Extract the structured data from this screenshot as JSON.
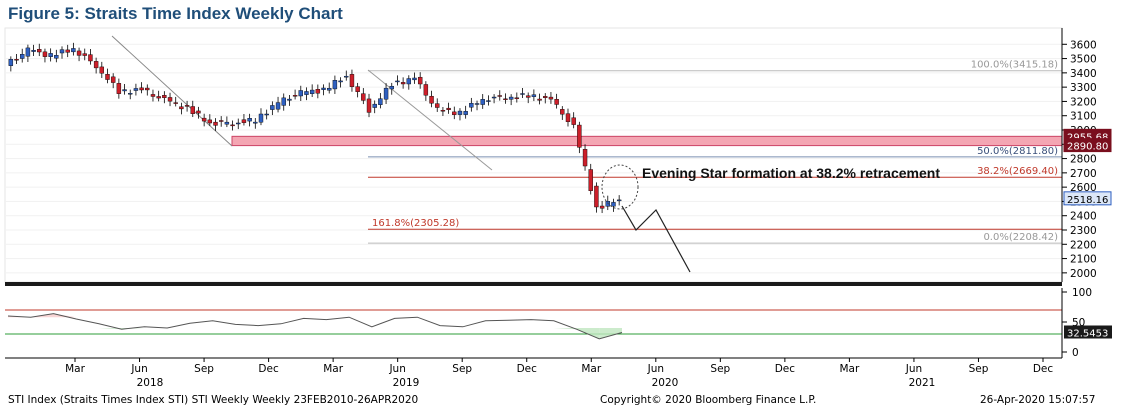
{
  "title": "Figure 5: Straits Time Index Weekly Chart",
  "annotation": "Evening Star formation at 38.2% retracement",
  "footer": {
    "left": "STI Index (Straits Times Index STI) STI Weekly  Weekly 23FEB2010-26APR2020",
    "center": "Copyright© 2020 Bloomberg Finance L.P.",
    "right": "26-Apr-2020 15:07:57"
  },
  "colors": {
    "up_candle": "#2e5fc0",
    "down_candle": "#cc1f2a",
    "resistance_zone": "#f4a6b3",
    "fib_line": "#c0392b",
    "rsi_line": "#555555",
    "title": "#1f4e79"
  },
  "chart_data": [
    {
      "type": "line",
      "name": "STI weekly price",
      "ylim": [
        1950,
        3700
      ],
      "y_ticks": [
        2000,
        2100,
        2200,
        2300,
        2400,
        2500,
        2600,
        2700,
        2800,
        2900,
        3000,
        3100,
        3200,
        3300,
        3400,
        3500,
        3600
      ],
      "x_ticks": [
        "Mar",
        "Jun",
        "Sep",
        "Dec",
        "Mar",
        "Jun",
        "Sep",
        "Dec",
        "Mar",
        "Jun",
        "Sep",
        "Dec",
        "Mar",
        "Jun",
        "Sep",
        "Dec"
      ],
      "x_years": [
        "2018",
        "2019",
        "2020",
        "2021"
      ],
      "x_dates": [
        "2018-01",
        "2018-02",
        "2018-03",
        "2018-04",
        "2018-05",
        "2018-06",
        "2018-07",
        "2018-08",
        "2018-09",
        "2018-10",
        "2018-11",
        "2018-12",
        "2019-01",
        "2019-02",
        "2019-03",
        "2019-04",
        "2019-05",
        "2019-06",
        "2019-07",
        "2019-08",
        "2019-09",
        "2019-10",
        "2019-11",
        "2019-12",
        "2020-01",
        "2020-02",
        "2020-03",
        "2020-04"
      ],
      "series": [
        {
          "values": [
            3450,
            3560,
            3520,
            3570,
            3450,
            3270,
            3280,
            3210,
            3150,
            3050,
            3050,
            3070,
            3190,
            3260,
            3280,
            3380,
            3140,
            3320,
            3360,
            3140,
            3120,
            3220,
            3230,
            3240,
            3210,
            3020,
            2450,
            2518
          ]
        }
      ],
      "price_labels": [
        "3415.18",
        "2955.68",
        "2890.80",
        "2518.16"
      ],
      "fibonacci": [
        {
          "label": "100.0%(3415.18)",
          "value": 3415.18
        },
        {
          "label": "50.0%(2811.80)",
          "value": 2811.8
        },
        {
          "label": "38.2%(2669.40)",
          "value": 2669.4
        },
        {
          "label": "0.0%(2208.42)",
          "value": 2208.42
        },
        {
          "label": "161.8%(2305.28)",
          "value": 2305.28
        }
      ],
      "resistance_zone": [
        2890.8,
        2955.68
      ]
    },
    {
      "type": "line",
      "name": "RSI",
      "ylim": [
        0,
        100
      ],
      "y_ticks": [
        0,
        50,
        100
      ],
      "levels": [
        70,
        30
      ],
      "last_value_label": "32.5453",
      "series": [
        {
          "values": [
            60,
            58,
            64,
            55,
            47,
            38,
            42,
            40,
            48,
            52,
            46,
            44,
            47,
            56,
            54,
            58,
            42,
            56,
            58,
            44,
            42,
            52,
            53,
            54,
            52,
            38,
            22,
            32.5
          ]
        }
      ]
    }
  ]
}
